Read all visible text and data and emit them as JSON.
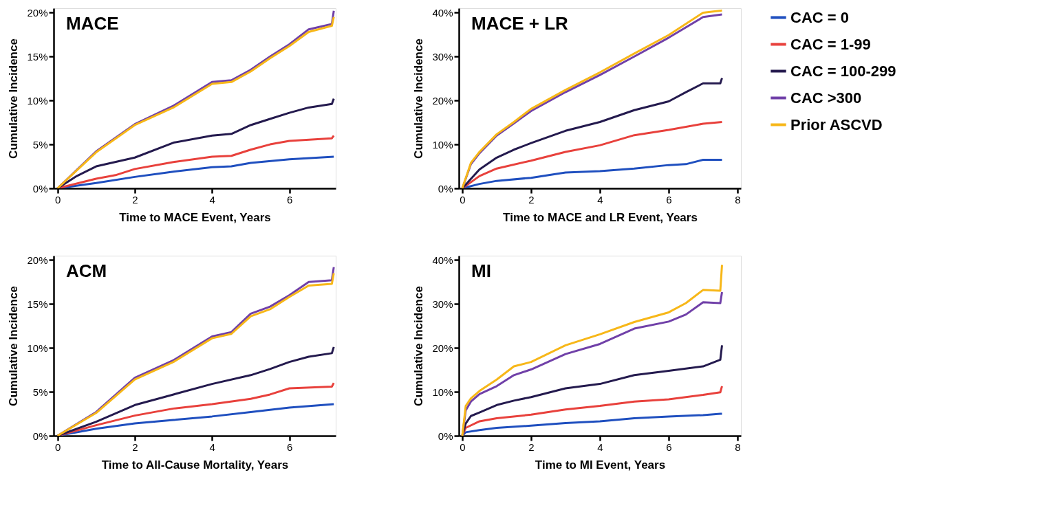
{
  "chart_data": [
    {
      "type": "line",
      "title": "MACE",
      "xlabel": "Time to MACE Event, Years",
      "ylabel": "Cumulative Incidence",
      "xlim": [
        -0.1,
        7.2
      ],
      "xticks": [
        0,
        2,
        4,
        6
      ],
      "ylim": [
        0,
        20.5
      ],
      "yticks": [
        {
          "value": 0,
          "label": "0%"
        },
        {
          "value": 5,
          "label": "5%"
        },
        {
          "value": 10,
          "label": "10%"
        },
        {
          "value": 15,
          "label": "15%"
        },
        {
          "value": 20,
          "label": "20%"
        }
      ],
      "grid": false,
      "legend": "right",
      "line_style": "solid",
      "marker": "none",
      "series": [
        {
          "name": "CAC = 0",
          "color": "#1f4fbf",
          "x": [
            0,
            1,
            2,
            3,
            4,
            4.5,
            5,
            6,
            7.15
          ],
          "values": [
            0,
            0.6,
            1.3,
            1.9,
            2.4,
            2.5,
            2.9,
            3.3,
            3.6
          ]
        },
        {
          "name": "CAC = 1-99",
          "color": "#e8413c",
          "x": [
            0,
            1,
            1.5,
            2,
            3,
            4,
            4.5,
            5,
            5.5,
            6,
            7.1,
            7.15
          ],
          "values": [
            0,
            1.1,
            1.5,
            2.2,
            3.0,
            3.6,
            3.7,
            4.4,
            5.0,
            5.4,
            5.7,
            6.0
          ]
        },
        {
          "name": "CAC = 100-299",
          "color": "#241a4e",
          "x": [
            0,
            0.5,
            1,
            2,
            3,
            4,
            4.5,
            5,
            5.5,
            6,
            6.5,
            7.1,
            7.15
          ],
          "values": [
            0,
            1.4,
            2.5,
            3.5,
            5.2,
            6.0,
            6.2,
            7.2,
            7.9,
            8.6,
            9.2,
            9.6,
            10.2
          ]
        },
        {
          "name": "CAC >300",
          "color": "#7040a8",
          "x": [
            0,
            1,
            2,
            3,
            4,
            4.5,
            5,
            5.5,
            6,
            6.5,
            7.1,
            7.15
          ],
          "values": [
            0,
            4.2,
            7.3,
            9.4,
            12.1,
            12.3,
            13.5,
            15.0,
            16.4,
            18.1,
            18.7,
            20.2
          ]
        },
        {
          "name": "Prior ASCVD",
          "color": "#f7b718",
          "x": [
            0,
            1,
            2,
            3,
            4,
            4.5,
            5,
            5.5,
            6,
            6.5,
            7.1,
            7.15
          ],
          "values": [
            0,
            4.1,
            7.2,
            9.2,
            11.9,
            12.1,
            13.3,
            14.8,
            16.2,
            17.8,
            18.5,
            19.5
          ]
        }
      ]
    },
    {
      "type": "line",
      "title": "MACE + LR",
      "xlabel": "Time to MACE and LR Event, Years",
      "ylabel": "Cumulative Incidence",
      "xlim": [
        -0.1,
        8.1
      ],
      "xticks": [
        0,
        2,
        4,
        6,
        8
      ],
      "ylim": [
        0,
        41
      ],
      "yticks": [
        {
          "value": 0,
          "label": "0%"
        },
        {
          "value": 10,
          "label": "10%"
        },
        {
          "value": 20,
          "label": "20%"
        },
        {
          "value": 30,
          "label": "30%"
        },
        {
          "value": 40,
          "label": "40%"
        }
      ],
      "grid": false,
      "legend": "right",
      "line_style": "solid",
      "marker": "none",
      "series": [
        {
          "name": "CAC = 0",
          "color": "#1f4fbf",
          "x": [
            0,
            0.5,
            1,
            2,
            3,
            4,
            5,
            6,
            6.5,
            7,
            7.55
          ],
          "values": [
            0,
            1.0,
            1.7,
            2.4,
            3.6,
            3.9,
            4.5,
            5.3,
            5.5,
            6.5,
            6.5
          ]
        },
        {
          "name": "CAC = 1-99",
          "color": "#e8413c",
          "x": [
            0,
            0.5,
            1,
            2,
            3,
            4,
            5,
            6,
            7,
            7.55
          ],
          "values": [
            0,
            2.8,
            4.5,
            6.3,
            8.3,
            9.8,
            12.1,
            13.3,
            14.7,
            15.1
          ]
        },
        {
          "name": "CAC = 100-299",
          "color": "#241a4e",
          "x": [
            0,
            0.5,
            1,
            1.5,
            2,
            3,
            4,
            5,
            6,
            6.5,
            7,
            7.5,
            7.55
          ],
          "values": [
            0,
            4.3,
            7.0,
            8.8,
            10.3,
            13.1,
            15.1,
            17.8,
            19.8,
            21.9,
            23.9,
            23.9,
            25.1
          ]
        },
        {
          "name": "CAC >300",
          "color": "#7040a8",
          "x": [
            0,
            0.25,
            0.5,
            1,
            1.5,
            2,
            3,
            4,
            5,
            6,
            7,
            7.55
          ],
          "values": [
            0,
            5.5,
            8.0,
            12.0,
            14.8,
            17.6,
            21.9,
            25.8,
            30.0,
            34.3,
            39.0,
            39.6
          ]
        },
        {
          "name": "Prior ASCVD",
          "color": "#f7b718",
          "x": [
            0,
            0.25,
            0.5,
            1,
            1.5,
            2,
            3,
            4,
            5,
            6,
            7,
            7.55
          ],
          "values": [
            0,
            5.8,
            8.3,
            12.3,
            15.1,
            18.1,
            22.4,
            26.4,
            30.7,
            34.9,
            40.0,
            40.5
          ]
        }
      ]
    },
    {
      "type": "line",
      "title": "ACM",
      "xlabel": "Time to All-Cause Mortality, Years",
      "ylabel": "Cumulative Incidence",
      "xlim": [
        -0.1,
        7.2
      ],
      "xticks": [
        0,
        2,
        4,
        6
      ],
      "ylim": [
        0,
        20.5
      ],
      "yticks": [
        {
          "value": 0,
          "label": "0%"
        },
        {
          "value": 5,
          "label": "5%"
        },
        {
          "value": 10,
          "label": "10%"
        },
        {
          "value": 15,
          "label": "15%"
        },
        {
          "value": 20,
          "label": "20%"
        }
      ],
      "grid": false,
      "legend": "right",
      "line_style": "solid",
      "marker": "none",
      "series": [
        {
          "name": "CAC = 0",
          "color": "#1f4fbf",
          "x": [
            0,
            1,
            2,
            3,
            4,
            5,
            6,
            7.15
          ],
          "values": [
            0,
            0.8,
            1.4,
            1.8,
            2.2,
            2.7,
            3.2,
            3.6
          ]
        },
        {
          "name": "CAC = 1-99",
          "color": "#e8413c",
          "x": [
            0,
            1,
            2,
            3,
            4,
            5,
            5.5,
            6,
            7.1,
            7.15
          ],
          "values": [
            0,
            1.2,
            2.3,
            3.1,
            3.6,
            4.2,
            4.7,
            5.4,
            5.6,
            6.0
          ]
        },
        {
          "name": "CAC = 100-299",
          "color": "#241a4e",
          "x": [
            0,
            1,
            2,
            3,
            4,
            5,
            5.5,
            6,
            6.5,
            7.1,
            7.15
          ],
          "values": [
            0,
            1.6,
            3.5,
            4.7,
            5.9,
            6.9,
            7.6,
            8.4,
            9.0,
            9.4,
            10.1
          ]
        },
        {
          "name": "CAC >300",
          "color": "#7040a8",
          "x": [
            0,
            1,
            2,
            3,
            4,
            4.5,
            5,
            5.5,
            6,
            6.5,
            7.1,
            7.15
          ],
          "values": [
            0,
            2.7,
            6.6,
            8.6,
            11.3,
            11.8,
            13.9,
            14.7,
            16.0,
            17.5,
            17.7,
            19.2
          ]
        },
        {
          "name": "Prior ASCVD",
          "color": "#f7b718",
          "x": [
            0,
            1,
            2,
            3,
            4,
            4.5,
            5,
            5.5,
            6,
            6.5,
            7.1,
            7.15
          ],
          "values": [
            0,
            2.6,
            6.4,
            8.4,
            11.1,
            11.6,
            13.6,
            14.4,
            15.8,
            17.1,
            17.3,
            18.5
          ]
        }
      ]
    },
    {
      "type": "line",
      "title": "MI",
      "xlabel": "Time to MI Event, Years",
      "ylabel": "Cumulative Incidence",
      "xlim": [
        -0.1,
        8.1
      ],
      "xticks": [
        0,
        2,
        4,
        6,
        8
      ],
      "ylim": [
        0,
        41
      ],
      "yticks": [
        {
          "value": 0,
          "label": "0%"
        },
        {
          "value": 10,
          "label": "10%"
        },
        {
          "value": 20,
          "label": "20%"
        },
        {
          "value": 30,
          "label": "30%"
        },
        {
          "value": 40,
          "label": "40%"
        }
      ],
      "grid": false,
      "legend": "right",
      "line_style": "solid",
      "marker": "none",
      "series": [
        {
          "name": "CAC = 0",
          "color": "#1f4fbf",
          "x": [
            0,
            0.1,
            0.5,
            1,
            2,
            3,
            4,
            5,
            6,
            7,
            7.5,
            7.55
          ],
          "values": [
            0,
            0.8,
            1.3,
            1.8,
            2.3,
            2.9,
            3.3,
            4.0,
            4.4,
            4.7,
            5.0,
            5.0
          ]
        },
        {
          "name": "CAC = 1-99",
          "color": "#e8413c",
          "x": [
            0,
            0.1,
            0.5,
            1,
            2,
            3,
            4,
            5,
            6,
            7,
            7.5,
            7.55
          ],
          "values": [
            0,
            1.8,
            3.3,
            4.0,
            4.8,
            6.0,
            6.8,
            7.8,
            8.3,
            9.3,
            9.9,
            11.3
          ]
        },
        {
          "name": "CAC = 100-299",
          "color": "#241a4e",
          "x": [
            0,
            0.1,
            0.25,
            0.5,
            1,
            1.5,
            2,
            3,
            4,
            5,
            6,
            7,
            7.5,
            7.55
          ],
          "values": [
            0,
            2.8,
            4.5,
            5.3,
            7.0,
            8.0,
            8.8,
            10.8,
            11.8,
            13.8,
            14.8,
            15.8,
            17.3,
            20.6
          ]
        },
        {
          "name": "CAC >300",
          "color": "#7040a8",
          "x": [
            0,
            0.1,
            0.25,
            0.5,
            1,
            1.5,
            2,
            3,
            4,
            5,
            6,
            6.5,
            7,
            7.5,
            7.55
          ],
          "values": [
            0,
            5.8,
            7.8,
            9.5,
            11.3,
            13.8,
            15.1,
            18.6,
            20.9,
            24.4,
            26.0,
            27.6,
            30.4,
            30.2,
            32.7
          ]
        },
        {
          "name": "Prior ASCVD",
          "color": "#f7b718",
          "x": [
            0,
            0.1,
            0.25,
            0.5,
            1,
            1.5,
            2,
            3,
            4,
            5,
            6,
            6.5,
            7,
            7.5,
            7.55
          ],
          "values": [
            0,
            6.8,
            8.5,
            10.2,
            12.8,
            15.8,
            16.8,
            20.6,
            23.1,
            25.9,
            28.1,
            30.2,
            33.2,
            33.0,
            38.9
          ]
        }
      ]
    }
  ]
}
